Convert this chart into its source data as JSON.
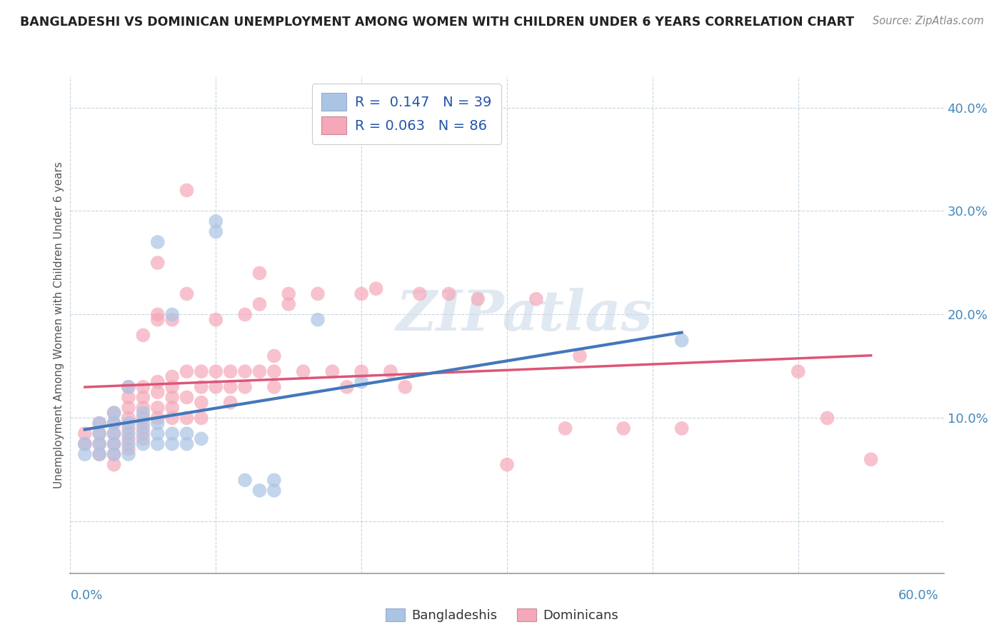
{
  "title": "BANGLADESHI VS DOMINICAN UNEMPLOYMENT AMONG WOMEN WITH CHILDREN UNDER 6 YEARS CORRELATION CHART",
  "source": "Source: ZipAtlas.com",
  "ylabel": "Unemployment Among Women with Children Under 6 years",
  "xlim": [
    0.0,
    0.6
  ],
  "ylim": [
    -0.05,
    0.43
  ],
  "yticks": [
    0.0,
    0.1,
    0.2,
    0.3,
    0.4
  ],
  "r_bangladeshi": 0.147,
  "n_bangladeshi": 39,
  "r_dominican": 0.063,
  "n_dominican": 86,
  "bangladeshi_color": "#aac4e4",
  "dominican_color": "#f4a8b8",
  "trend_bangladeshi_color": "#4477bb",
  "trend_dominican_color": "#dd5577",
  "bangladeshi_scatter": [
    [
      0.01,
      0.075
    ],
    [
      0.01,
      0.065
    ],
    [
      0.02,
      0.095
    ],
    [
      0.02,
      0.085
    ],
    [
      0.02,
      0.075
    ],
    [
      0.02,
      0.065
    ],
    [
      0.03,
      0.105
    ],
    [
      0.03,
      0.095
    ],
    [
      0.03,
      0.085
    ],
    [
      0.03,
      0.075
    ],
    [
      0.03,
      0.065
    ],
    [
      0.04,
      0.13
    ],
    [
      0.04,
      0.095
    ],
    [
      0.04,
      0.085
    ],
    [
      0.04,
      0.075
    ],
    [
      0.04,
      0.065
    ],
    [
      0.05,
      0.105
    ],
    [
      0.05,
      0.095
    ],
    [
      0.05,
      0.085
    ],
    [
      0.05,
      0.075
    ],
    [
      0.06,
      0.095
    ],
    [
      0.06,
      0.085
    ],
    [
      0.06,
      0.075
    ],
    [
      0.06,
      0.27
    ],
    [
      0.07,
      0.085
    ],
    [
      0.07,
      0.075
    ],
    [
      0.07,
      0.2
    ],
    [
      0.08,
      0.085
    ],
    [
      0.08,
      0.075
    ],
    [
      0.09,
      0.08
    ],
    [
      0.1,
      0.29
    ],
    [
      0.1,
      0.28
    ],
    [
      0.12,
      0.04
    ],
    [
      0.13,
      0.03
    ],
    [
      0.14,
      0.04
    ],
    [
      0.14,
      0.03
    ],
    [
      0.17,
      0.195
    ],
    [
      0.2,
      0.135
    ],
    [
      0.42,
      0.175
    ]
  ],
  "dominican_scatter": [
    [
      0.01,
      0.085
    ],
    [
      0.01,
      0.075
    ],
    [
      0.02,
      0.095
    ],
    [
      0.02,
      0.085
    ],
    [
      0.02,
      0.075
    ],
    [
      0.02,
      0.065
    ],
    [
      0.03,
      0.105
    ],
    [
      0.03,
      0.095
    ],
    [
      0.03,
      0.085
    ],
    [
      0.03,
      0.075
    ],
    [
      0.03,
      0.065
    ],
    [
      0.03,
      0.055
    ],
    [
      0.04,
      0.13
    ],
    [
      0.04,
      0.12
    ],
    [
      0.04,
      0.11
    ],
    [
      0.04,
      0.1
    ],
    [
      0.04,
      0.09
    ],
    [
      0.04,
      0.08
    ],
    [
      0.04,
      0.07
    ],
    [
      0.05,
      0.18
    ],
    [
      0.05,
      0.13
    ],
    [
      0.05,
      0.12
    ],
    [
      0.05,
      0.11
    ],
    [
      0.05,
      0.1
    ],
    [
      0.05,
      0.09
    ],
    [
      0.05,
      0.08
    ],
    [
      0.06,
      0.25
    ],
    [
      0.06,
      0.2
    ],
    [
      0.06,
      0.195
    ],
    [
      0.06,
      0.135
    ],
    [
      0.06,
      0.125
    ],
    [
      0.06,
      0.11
    ],
    [
      0.06,
      0.1
    ],
    [
      0.07,
      0.195
    ],
    [
      0.07,
      0.14
    ],
    [
      0.07,
      0.13
    ],
    [
      0.07,
      0.12
    ],
    [
      0.07,
      0.11
    ],
    [
      0.07,
      0.1
    ],
    [
      0.08,
      0.32
    ],
    [
      0.08,
      0.22
    ],
    [
      0.08,
      0.145
    ],
    [
      0.08,
      0.12
    ],
    [
      0.08,
      0.1
    ],
    [
      0.09,
      0.145
    ],
    [
      0.09,
      0.13
    ],
    [
      0.09,
      0.115
    ],
    [
      0.09,
      0.1
    ],
    [
      0.1,
      0.195
    ],
    [
      0.1,
      0.145
    ],
    [
      0.1,
      0.13
    ],
    [
      0.11,
      0.145
    ],
    [
      0.11,
      0.13
    ],
    [
      0.11,
      0.115
    ],
    [
      0.12,
      0.2
    ],
    [
      0.12,
      0.145
    ],
    [
      0.12,
      0.13
    ],
    [
      0.13,
      0.24
    ],
    [
      0.13,
      0.21
    ],
    [
      0.13,
      0.145
    ],
    [
      0.14,
      0.16
    ],
    [
      0.14,
      0.145
    ],
    [
      0.14,
      0.13
    ],
    [
      0.15,
      0.22
    ],
    [
      0.15,
      0.21
    ],
    [
      0.16,
      0.145
    ],
    [
      0.17,
      0.22
    ],
    [
      0.18,
      0.145
    ],
    [
      0.19,
      0.13
    ],
    [
      0.2,
      0.22
    ],
    [
      0.2,
      0.145
    ],
    [
      0.21,
      0.225
    ],
    [
      0.22,
      0.145
    ],
    [
      0.23,
      0.13
    ],
    [
      0.24,
      0.22
    ],
    [
      0.26,
      0.22
    ],
    [
      0.28,
      0.215
    ],
    [
      0.3,
      0.055
    ],
    [
      0.32,
      0.215
    ],
    [
      0.34,
      0.09
    ],
    [
      0.35,
      0.16
    ],
    [
      0.38,
      0.09
    ],
    [
      0.42,
      0.09
    ],
    [
      0.5,
      0.145
    ],
    [
      0.52,
      0.1
    ],
    [
      0.55,
      0.06
    ]
  ]
}
